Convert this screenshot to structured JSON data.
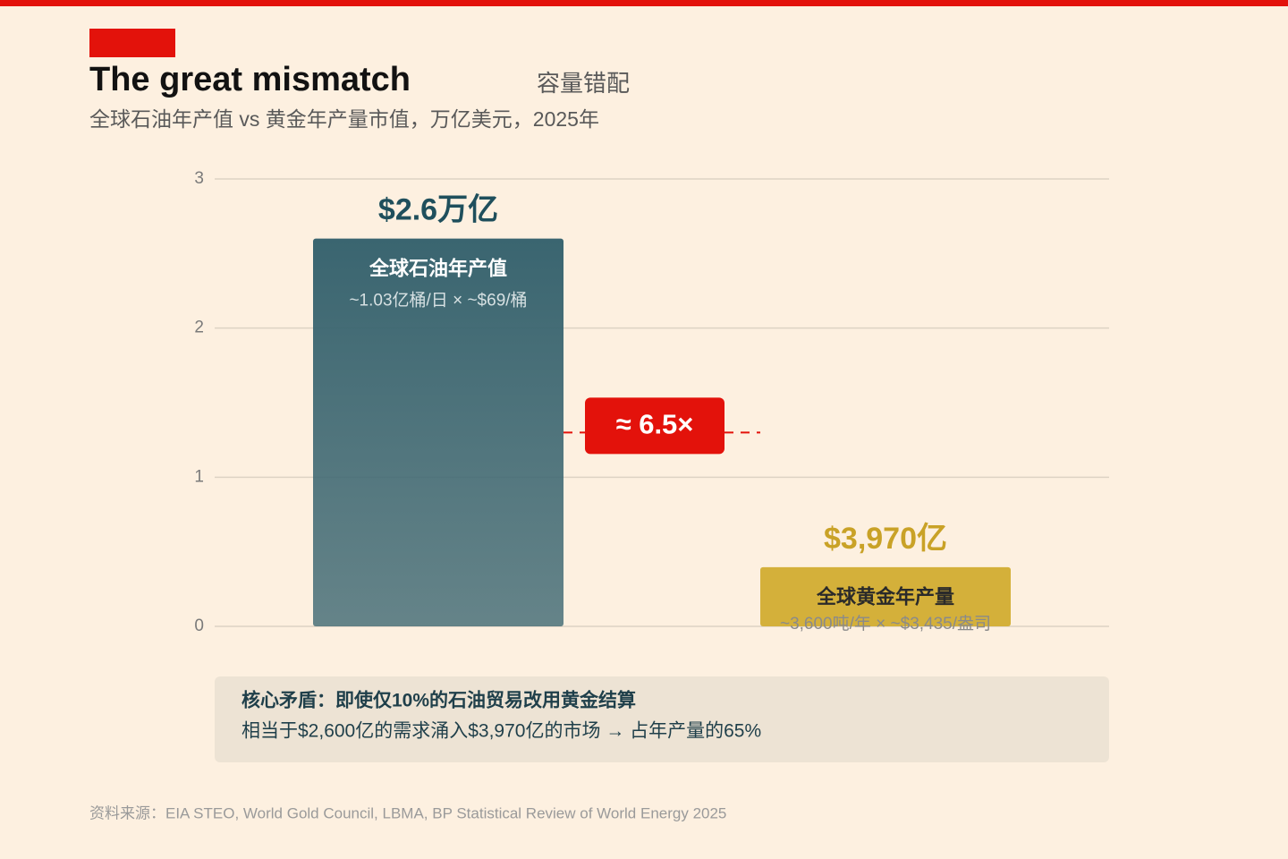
{
  "chart_data": {
    "type": "bar",
    "title": "The great mismatch",
    "title_tag": "容量错配",
    "subtitle": "全球石油年产值 vs 黄金年产量市值，万亿美元，2025年",
    "categories": [
      "全球石油年产值",
      "全球黄金年产量"
    ],
    "category_notes": [
      "~1.03亿桶/日 × ~$69/桶",
      "~3,600吨/年 × ~$3,435/盎司"
    ],
    "values": [
      2.6,
      0.397
    ],
    "value_labels": [
      "$2.6万亿",
      "$3,970亿"
    ],
    "colors": [
      "#3a6570",
      "#d4b03a"
    ],
    "label_colors": [
      "#1f4f5c",
      "#c9a227"
    ],
    "ylim": [
      0,
      3
    ],
    "yticks": [
      0,
      1,
      2,
      3
    ],
    "grid": true,
    "annotation": "≈ 6.5×"
  },
  "callout": {
    "title": "核心矛盾：即使仅10%的石油贸易改用黄金结算",
    "text": "相当于$2,600亿的需求涌入$3,970亿的市场 → 占年产量的65%"
  },
  "source": "资料来源：EIA STEO, World Gold Council, LBMA, BP Statistical Review of World Energy 2025"
}
